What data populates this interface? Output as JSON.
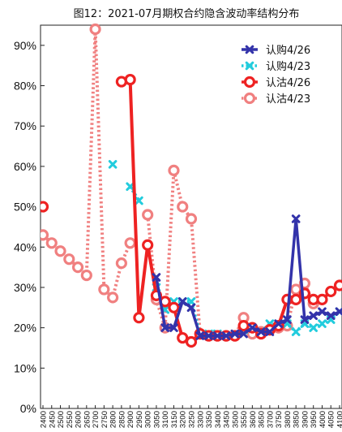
{
  "chart_data": {
    "type": "line",
    "title": "图12：2021-07月期权合约隐含波动率结构分布",
    "xlabel": "",
    "ylabel": "",
    "ylim": [
      0,
      95
    ],
    "yticks": [
      "0%",
      "10%",
      "20%",
      "30%",
      "40%",
      "50%",
      "60%",
      "70%",
      "80%",
      "90%"
    ],
    "ytick_values": [
      0,
      10,
      20,
      30,
      40,
      50,
      60,
      70,
      80,
      90
    ],
    "categories": [
      "2400",
      "2450",
      "2500",
      "2550",
      "2600",
      "2650",
      "2700",
      "2750",
      "2800",
      "2850",
      "2900",
      "2950",
      "3000",
      "3050",
      "3100",
      "3150",
      "3200",
      "3250",
      "3300",
      "3350",
      "3400",
      "3450",
      "3500",
      "3550",
      "3600",
      "3650",
      "3700",
      "3750",
      "3800",
      "3850",
      "3900",
      "3950",
      "4000",
      "4050",
      "4100"
    ],
    "legend_position": "top-right",
    "grid": false,
    "series": [
      {
        "name": "认购4/26",
        "color": "#3333aa",
        "style": "solid",
        "marker": "x",
        "values": [
          null,
          null,
          null,
          null,
          null,
          null,
          null,
          null,
          null,
          null,
          null,
          null,
          null,
          32.5,
          20,
          20,
          26.5,
          25,
          18,
          18,
          18,
          18,
          18.5,
          18.5,
          20,
          19,
          19,
          21,
          22,
          47,
          22,
          23,
          24,
          23,
          24
        ]
      },
      {
        "name": "认购4/23",
        "color": "#22ccdd",
        "style": "dotted",
        "marker": "x",
        "values": [
          null,
          null,
          null,
          null,
          null,
          null,
          null,
          null,
          60.5,
          null,
          55,
          51.5,
          null,
          30,
          24.5,
          26.5,
          26.5,
          26.5,
          18.5,
          18.5,
          18.5,
          18,
          18,
          19.5,
          20,
          19,
          21,
          20.5,
          21,
          19,
          21,
          20,
          21,
          22,
          24
        ]
      },
      {
        "name": "认沽4/26",
        "color": "#ee2222",
        "style": "solid",
        "marker": "o",
        "values": [
          50,
          null,
          null,
          null,
          null,
          null,
          null,
          null,
          null,
          81,
          81.5,
          22.5,
          40.5,
          28,
          26.5,
          25,
          17.5,
          16.5,
          18.5,
          18,
          18,
          18,
          18,
          20.5,
          20,
          18.5,
          19.5,
          20.5,
          27,
          27,
          28.5,
          27,
          27,
          29,
          30.5
        ]
      },
      {
        "name": "认沽4/23",
        "color": "#f08080",
        "style": "dotted",
        "marker": "o",
        "values": [
          43,
          41,
          39,
          37,
          35,
          33,
          94,
          29.5,
          27.5,
          36,
          41,
          null,
          48,
          27,
          20,
          59,
          50,
          47,
          18.5,
          18,
          18,
          18,
          18,
          22.5,
          18.5,
          19,
          19.5,
          20,
          20.5,
          29.5,
          31,
          26,
          null,
          null,
          null
        ]
      }
    ]
  }
}
